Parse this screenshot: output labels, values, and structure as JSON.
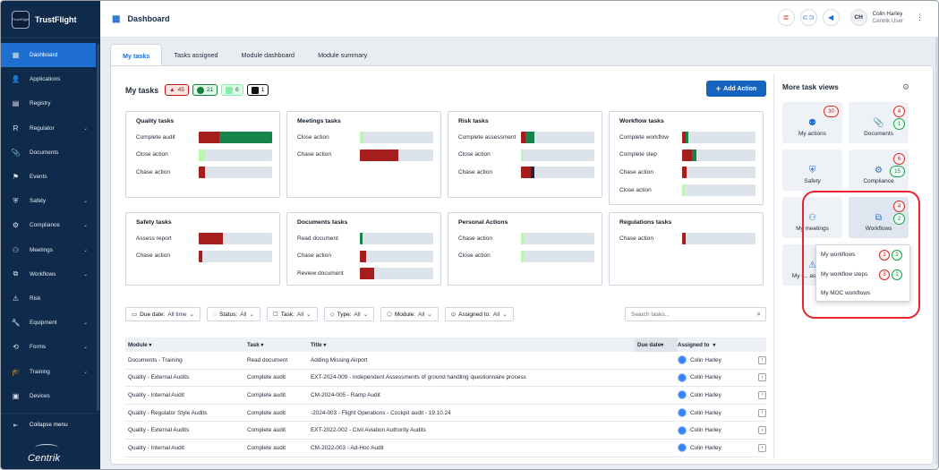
{
  "app": {
    "name": "TrustFlight",
    "logo_text": "TrustFlight",
    "brand": "Centrik"
  },
  "sidebar": {
    "items": [
      {
        "label": "Dashboard",
        "icon": "dashboard-icon",
        "glyph": "▦",
        "active": true,
        "chev": false
      },
      {
        "label": "Applications",
        "icon": "person-icon",
        "glyph": "👤",
        "chev": false
      },
      {
        "label": "Registry",
        "icon": "book-icon",
        "glyph": "▤",
        "chev": false
      },
      {
        "label": "Regulator",
        "icon": "r-icon",
        "glyph": "R",
        "chev": true
      },
      {
        "label": "Documents",
        "icon": "paperclip-icon",
        "glyph": "📎",
        "chev": false
      },
      {
        "label": "Events",
        "icon": "flag-icon",
        "glyph": "⚑",
        "chev": false
      },
      {
        "label": "Safety",
        "icon": "shield-icon",
        "glyph": "⛨",
        "chev": true
      },
      {
        "label": "Compliance",
        "icon": "gear-icon",
        "glyph": "⚙",
        "chev": true
      },
      {
        "label": "Meetings",
        "icon": "people-icon",
        "glyph": "⚇",
        "chev": true
      },
      {
        "label": "Workflows",
        "icon": "workflow-icon",
        "glyph": "⧉",
        "chev": true
      },
      {
        "label": "Risk",
        "icon": "warning-icon",
        "glyph": "⚠",
        "chev": false
      },
      {
        "label": "Equipment",
        "icon": "wrench-icon",
        "glyph": "🔧",
        "chev": true
      },
      {
        "label": "Forms",
        "icon": "forms-icon",
        "glyph": "⟲",
        "chev": true
      },
      {
        "label": "Training",
        "icon": "mortarboard-icon",
        "glyph": "🎓",
        "chev": true
      },
      {
        "label": "Devices",
        "icon": "devices-icon",
        "glyph": "▣",
        "chev": false
      }
    ],
    "collapse_label": "Collapse menu"
  },
  "topbar": {
    "title": "Dashboard",
    "user_name": "Colin Harley",
    "user_role": "Centrik User",
    "initials": "CH"
  },
  "tabs": [
    {
      "label": "My tasks",
      "active": true
    },
    {
      "label": "Tasks assigned"
    },
    {
      "label": "Module dashboard"
    },
    {
      "label": "Module summary"
    }
  ],
  "mytasks": {
    "title": "My tasks",
    "overdue": "45",
    "ok": "21",
    "soon": "6",
    "other": "1",
    "add_action": "Add Action"
  },
  "task_cards": [
    {
      "title": "Quality tasks",
      "rows": [
        {
          "label": "Complete audit",
          "segs": [
            {
              "f": 0.28,
              "c": "#a51d1d"
            },
            {
              "f": 0.72,
              "c": "#16834a"
            }
          ]
        },
        {
          "label": "Close action",
          "segs": [
            {
              "f": 0.08,
              "c": "#bbf7b0"
            }
          ]
        },
        {
          "label": "Chase action",
          "segs": [
            {
              "f": 0.09,
              "c": "#a51d1d"
            }
          ]
        }
      ]
    },
    {
      "title": "Meetings tasks",
      "rows": [
        {
          "label": "Close action",
          "segs": [
            {
              "f": 0.05,
              "c": "#bbf7b0"
            }
          ]
        },
        {
          "label": "Chase action",
          "segs": [
            {
              "f": 0.52,
              "c": "#a51d1d"
            }
          ]
        }
      ]
    },
    {
      "title": "Risk tasks",
      "rows": [
        {
          "label": "Complete assessment",
          "segs": [
            {
              "f": 0.06,
              "c": "#a51d1d"
            },
            {
              "f": 0.12,
              "c": "#16834a"
            }
          ]
        },
        {
          "label": "Close action",
          "segs": [
            {
              "f": 0.03,
              "c": "#bbf7b0"
            }
          ]
        },
        {
          "label": "Chase action",
          "segs": [
            {
              "f": 0.14,
              "c": "#a51d1d"
            },
            {
              "f": 0.04,
              "c": "#1f2937"
            }
          ]
        }
      ]
    },
    {
      "title": "Workflow tasks",
      "rows": [
        {
          "label": "Complete workflow",
          "segs": [
            {
              "f": 0.05,
              "c": "#a51d1d"
            },
            {
              "f": 0.04,
              "c": "#16834a"
            }
          ]
        },
        {
          "label": "Complete step",
          "segs": [
            {
              "f": 0.14,
              "c": "#a51d1d"
            },
            {
              "f": 0.06,
              "c": "#16834a"
            }
          ]
        },
        {
          "label": "Chase action",
          "segs": [
            {
              "f": 0.06,
              "c": "#a51d1d"
            }
          ]
        },
        {
          "label": "Close action",
          "segs": [
            {
              "f": 0.04,
              "c": "#bbf7b0"
            }
          ]
        }
      ]
    },
    {
      "title": "Safety tasks",
      "rows": [
        {
          "label": "Assess report",
          "segs": [
            {
              "f": 0.33,
              "c": "#a51d1d"
            }
          ]
        },
        {
          "label": "Chase action",
          "segs": [
            {
              "f": 0.05,
              "c": "#a51d1d"
            }
          ]
        }
      ]
    },
    {
      "title": "Documents tasks",
      "rows": [
        {
          "label": "Read document",
          "segs": [
            {
              "f": 0.04,
              "c": "#16834a"
            }
          ]
        },
        {
          "label": "Chase action",
          "segs": [
            {
              "f": 0.09,
              "c": "#a51d1d"
            }
          ]
        },
        {
          "label": "Review document",
          "segs": [
            {
              "f": 0.19,
              "c": "#a51d1d"
            }
          ]
        }
      ]
    },
    {
      "title": "Personal Actions",
      "rows": [
        {
          "label": "Chase action",
          "segs": [
            {
              "f": 0.04,
              "c": "#bbf7b0"
            }
          ]
        },
        {
          "label": "Close action",
          "segs": [
            {
              "f": 0.04,
              "c": "#bbf7b0"
            }
          ]
        }
      ]
    },
    {
      "title": "Regulations tasks",
      "rows": [
        {
          "label": "Chase action",
          "segs": [
            {
              "f": 0.05,
              "c": "#a51d1d"
            }
          ]
        }
      ]
    }
  ],
  "filters": [
    {
      "icon": "calendar-icon",
      "glyph": "▭",
      "label": "Due date:",
      "value": "All time"
    },
    {
      "icon": "status-icon",
      "glyph": "◌",
      "label": "Status:",
      "value": "All"
    },
    {
      "icon": "task-icon",
      "glyph": "☐",
      "label": "Task:",
      "value": "All"
    },
    {
      "icon": "tag-icon",
      "glyph": "◇",
      "label": "Type:",
      "value": "All"
    },
    {
      "icon": "module-icon",
      "glyph": "⬡",
      "label": "Module:",
      "value": "All"
    },
    {
      "icon": "assignee-icon",
      "glyph": "⊙",
      "label": "Assigned to:",
      "value": "All"
    }
  ],
  "search": {
    "placeholder": "Search tasks..."
  },
  "table": {
    "headers": [
      "Module",
      "Task",
      "Title",
      "Due date",
      "Assigned to"
    ],
    "rows": [
      [
        "Documents - Training",
        "Read document",
        "Adding Missing Airport",
        "",
        "Colin Harley"
      ],
      [
        "Quality - External Audits",
        "Complete audit",
        "EXT-2024-009 - Independent Assessments of ground handling questionnaire process",
        "",
        "Colin Harley"
      ],
      [
        "Quality - Internal Audit",
        "Complete audit",
        "CM-2024-005 - Ramp Audit",
        "",
        "Colin Harley"
      ],
      [
        "Quality - Regulator Style Audits",
        "Complete audit",
        "-2024-003 - Flight Operations - Cockpit audit - 19.10.24",
        "",
        "Colin Harley"
      ],
      [
        "Quality - External Audits",
        "Complete audit",
        "EXT-2022-002 - Civil Aviation Authority Audits",
        "",
        "Colin Harley"
      ],
      [
        "Quality - Internal Audit",
        "Complete audit",
        "CM-2022-003 - Ad-Hoc Audit",
        "",
        "Colin Harley"
      ]
    ]
  },
  "views": {
    "title": "More task views",
    "tiles": [
      {
        "label": "My actions",
        "icon": "actions-icon",
        "glyph": "⚉",
        "badges": [
          {
            "v": "30",
            "t": "r"
          }
        ]
      },
      {
        "label": "Documents",
        "icon": "paperclip-icon",
        "glyph": "📎",
        "badges": [
          {
            "v": "4",
            "t": "r"
          },
          {
            "v": "1",
            "t": "g"
          }
        ]
      },
      {
        "label": "Safety",
        "icon": "shield-icon",
        "glyph": "⛨",
        "badges": []
      },
      {
        "label": "Compliance",
        "icon": "gear-icon",
        "glyph": "⚙",
        "badges": [
          {
            "v": "6",
            "t": "r"
          },
          {
            "v": "15",
            "t": "g"
          }
        ]
      },
      {
        "label": "My meetings",
        "icon": "people-icon",
        "glyph": "⚇",
        "badges": []
      },
      {
        "label": "Workflows",
        "icon": "workflow-icon",
        "glyph": "⧉",
        "badges": [
          {
            "v": "4",
            "t": "r"
          },
          {
            "v": "2",
            "t": "g"
          }
        ]
      },
      {
        "label": "My r... assess...",
        "icon": "warning-icon",
        "glyph": "⚠",
        "badges": []
      }
    ],
    "popup": [
      {
        "label": "My workflows",
        "r": "1",
        "g": "1"
      },
      {
        "label": "My workflow steps",
        "r": "3",
        "g": "1"
      },
      {
        "label": "My MOC workflows",
        "r": "",
        "g": ""
      }
    ]
  }
}
